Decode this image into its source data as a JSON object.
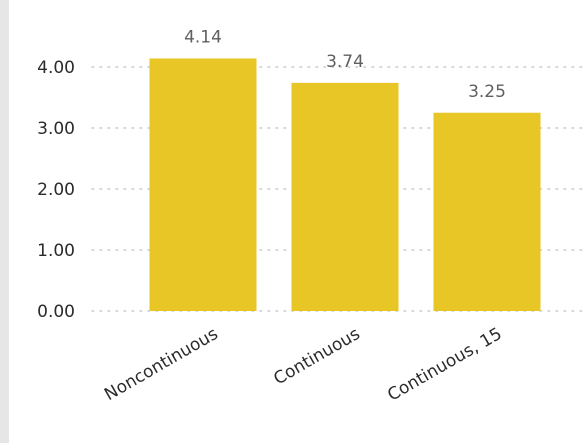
{
  "chart_data": {
    "type": "bar",
    "categories": [
      "Noncontinuous",
      "Continuous",
      "Continuous, 15"
    ],
    "values": [
      4.14,
      3.74,
      3.25
    ],
    "data_labels": [
      "4.14",
      "3.74",
      "3.25"
    ],
    "yticks": [
      "0.00",
      "1.00",
      "2.00",
      "3.00",
      "4.00"
    ],
    "ylim": [
      0,
      4.8
    ],
    "grid": true,
    "bar_color": "#E8C626",
    "grid_color": "#c8c8c8",
    "title": "",
    "xlabel": "",
    "ylabel": ""
  }
}
